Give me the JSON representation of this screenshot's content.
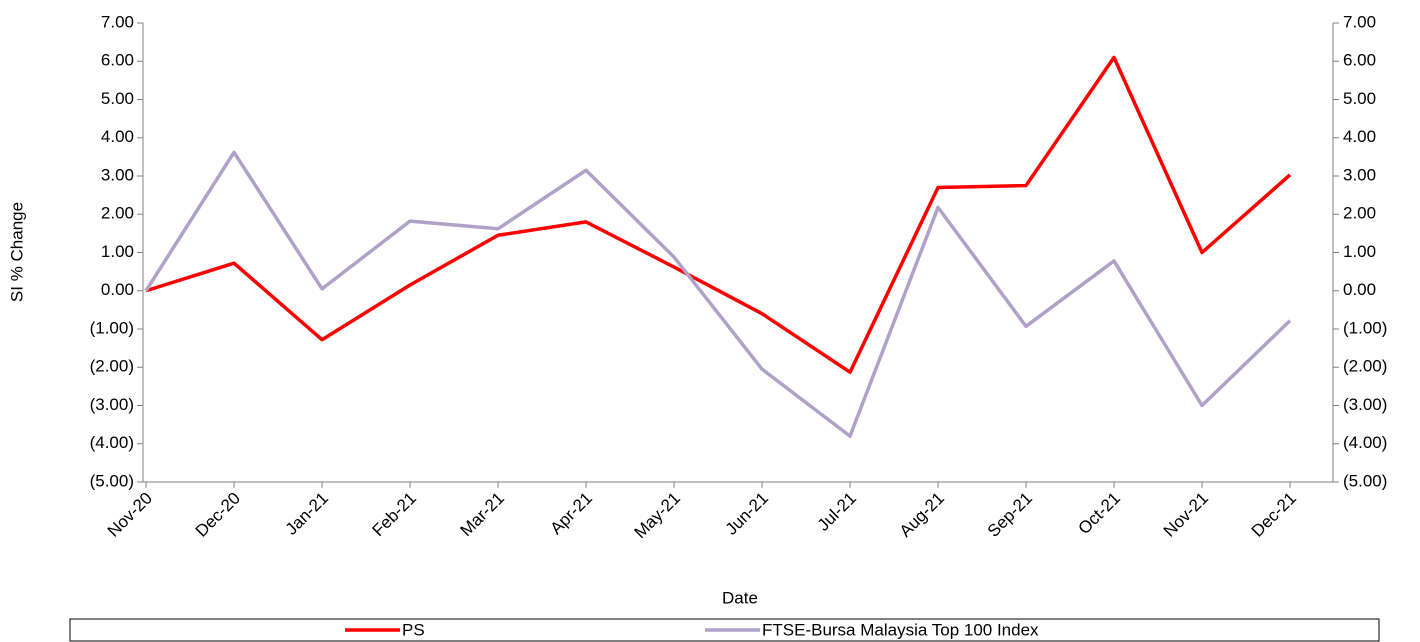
{
  "chart_data": {
    "type": "line",
    "x_label": "Date",
    "y_label": "SI % Change",
    "categories": [
      "Nov-20",
      "Dec-20",
      "Jan-21",
      "Feb-21",
      "Mar-21",
      "Apr-21",
      "May-21",
      "Jun-21",
      "Jul-21",
      "Aug-21",
      "Sep-21",
      "Oct-21",
      "Nov-21",
      "Dec-21"
    ],
    "series": [
      {
        "name": "PS",
        "color": "#ff0000",
        "values": [
          0.0,
          0.72,
          -1.28,
          0.15,
          1.45,
          1.8,
          0.62,
          -0.6,
          -2.13,
          2.7,
          2.75,
          6.1,
          1.0,
          3.03
        ]
      },
      {
        "name": "FTSE-Bursa Malaysia Top 100 Index",
        "color": "#b1a0c7",
        "axis": "y2",
        "values": [
          0.0,
          3.62,
          0.05,
          1.82,
          1.62,
          3.15,
          0.88,
          -2.05,
          -3.8,
          2.18,
          -0.93,
          0.78,
          -3.0,
          -0.78
        ]
      }
    ],
    "ylim": [
      -5,
      7
    ],
    "yticks": [
      {
        "value": -5,
        "label": "(5.00)"
      },
      {
        "value": -4,
        "label": "(4.00)"
      },
      {
        "value": -3,
        "label": "(3.00)"
      },
      {
        "value": -2,
        "label": "(2.00)"
      },
      {
        "value": -1,
        "label": "(1.00)"
      },
      {
        "value": 0,
        "label": "0.00"
      },
      {
        "value": 1,
        "label": "1.00"
      },
      {
        "value": 2,
        "label": "2.00"
      },
      {
        "value": 3,
        "label": "3.00"
      },
      {
        "value": 4,
        "label": "4.00"
      },
      {
        "value": 5,
        "label": "5.00"
      },
      {
        "value": 6,
        "label": "6.00"
      },
      {
        "value": 7,
        "label": "7.00"
      }
    ],
    "y2lim": [
      -5,
      7
    ],
    "y2ticks": [
      {
        "value": -5,
        "label": "(5.00)"
      },
      {
        "value": -4,
        "label": "(4.00)"
      },
      {
        "value": -3,
        "label": "(3.00)"
      },
      {
        "value": -2,
        "label": "(2.00)"
      },
      {
        "value": -1,
        "label": "(1.00)"
      },
      {
        "value": 0,
        "label": "0.00"
      },
      {
        "value": 1,
        "label": "1.00"
      },
      {
        "value": 2,
        "label": "2.00"
      },
      {
        "value": 3,
        "label": "3.00"
      },
      {
        "value": 4,
        "label": "4.00"
      },
      {
        "value": 5,
        "label": "5.00"
      },
      {
        "value": 6,
        "label": "6.00"
      },
      {
        "value": 7,
        "label": "7.00"
      }
    ],
    "negative_tick_color": "#ff0000",
    "grid": false,
    "legend": "bottom"
  }
}
